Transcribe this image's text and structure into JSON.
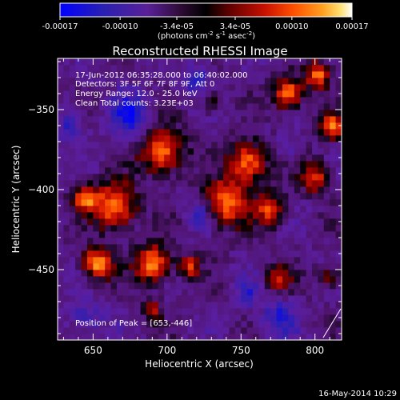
{
  "colorbar": {
    "ticks": [
      "-0.00017",
      "-0.00010",
      "-3.4e-05",
      "3.4e-05",
      "0.00010",
      "0.00017"
    ],
    "tick_values": [
      -0.00017,
      -0.0001,
      -3.4e-05,
      3.4e-05,
      0.0001,
      0.00017
    ],
    "range": [
      -0.00017,
      0.00017
    ],
    "unit_prefix": "(photons cm",
    "unit_sup1": "-2",
    "unit_mid": " s",
    "unit_sup2": "-1",
    "unit_mid2": " asec",
    "unit_sup3": "-2",
    "unit_suffix": ")"
  },
  "chart_data": {
    "type": "heatmap",
    "title": "Reconstructed RHESSI Image",
    "xlabel": "Heliocentric X (arcsec)",
    "ylabel": "Heliocentric Y (arcsec)",
    "xlim": [
      626,
      818
    ],
    "ylim": [
      -494,
      -318
    ],
    "x_ticks": [
      650,
      700,
      750,
      800
    ],
    "y_ticks": [
      -350,
      -400,
      -450
    ],
    "x_tick_labels": [
      "650",
      "700",
      "750",
      "800"
    ],
    "y_tick_labels": [
      "−350",
      "−400",
      "−450"
    ],
    "colorscale": [
      "#0000ff",
      "#2020c0",
      "#400080",
      "#6020a0",
      "#3a1040",
      "#000000",
      "#400000",
      "#900000",
      "#d02000",
      "#ff6000",
      "#ffa020",
      "#ffe060",
      "#ffffff"
    ],
    "blobs": [
      {
        "x": 653,
        "y": -446,
        "s": 7,
        "a": 1.0
      },
      {
        "x": 690,
        "y": -446,
        "s": 8,
        "a": 0.95
      },
      {
        "x": 715,
        "y": -448,
        "s": 5,
        "a": 0.7
      },
      {
        "x": 665,
        "y": -410,
        "s": 10,
        "a": 0.95
      },
      {
        "x": 645,
        "y": -405,
        "s": 6,
        "a": 0.8
      },
      {
        "x": 740,
        "y": -408,
        "s": 10,
        "a": 0.9
      },
      {
        "x": 770,
        "y": -412,
        "s": 7,
        "a": 0.75
      },
      {
        "x": 697,
        "y": -376,
        "s": 10,
        "a": 0.9
      },
      {
        "x": 755,
        "y": -383,
        "s": 9,
        "a": 0.9
      },
      {
        "x": 782,
        "y": -340,
        "s": 7,
        "a": 0.9
      },
      {
        "x": 802,
        "y": -328,
        "s": 6,
        "a": 0.85
      },
      {
        "x": 812,
        "y": -360,
        "s": 6,
        "a": 0.8
      },
      {
        "x": 800,
        "y": -392,
        "s": 7,
        "a": 0.7
      },
      {
        "x": 775,
        "y": -455,
        "s": 6,
        "a": 0.55
      },
      {
        "x": 690,
        "y": -475,
        "s": 5,
        "a": 0.5
      },
      {
        "x": 730,
        "y": -345,
        "s": 5,
        "a": 0.45
      },
      {
        "x": 810,
        "y": -455,
        "s": 5,
        "a": 0.5
      }
    ],
    "neg_blobs": [
      {
        "x": 675,
        "y": -353,
        "s": 9,
        "a": 1.0
      },
      {
        "x": 635,
        "y": -360,
        "s": 7,
        "a": 0.7
      },
      {
        "x": 720,
        "y": -330,
        "s": 7,
        "a": 0.7
      },
      {
        "x": 775,
        "y": -480,
        "s": 8,
        "a": 0.8
      },
      {
        "x": 722,
        "y": -415,
        "s": 6,
        "a": 0.7
      },
      {
        "x": 645,
        "y": -480,
        "s": 8,
        "a": 0.6
      },
      {
        "x": 780,
        "y": -375,
        "s": 5,
        "a": 0.5
      },
      {
        "x": 755,
        "y": -465,
        "s": 6,
        "a": 0.6
      }
    ],
    "peak_position": [
      653,
      -446
    ]
  },
  "info": {
    "time_range": "17-Jun-2012 06:35:28.000 to 06:40:02.000",
    "detectors": "Detectors: 3F 5F 6F 7F 8F 9F, Att 0",
    "energy": "Energy Range: 12.0 - 25.0 keV",
    "clean": "Clean     Total counts: 3.23E+03",
    "peak": "Position of Peak = [653,-446]"
  },
  "footer": {
    "date": "16-May-2014 10:29"
  }
}
